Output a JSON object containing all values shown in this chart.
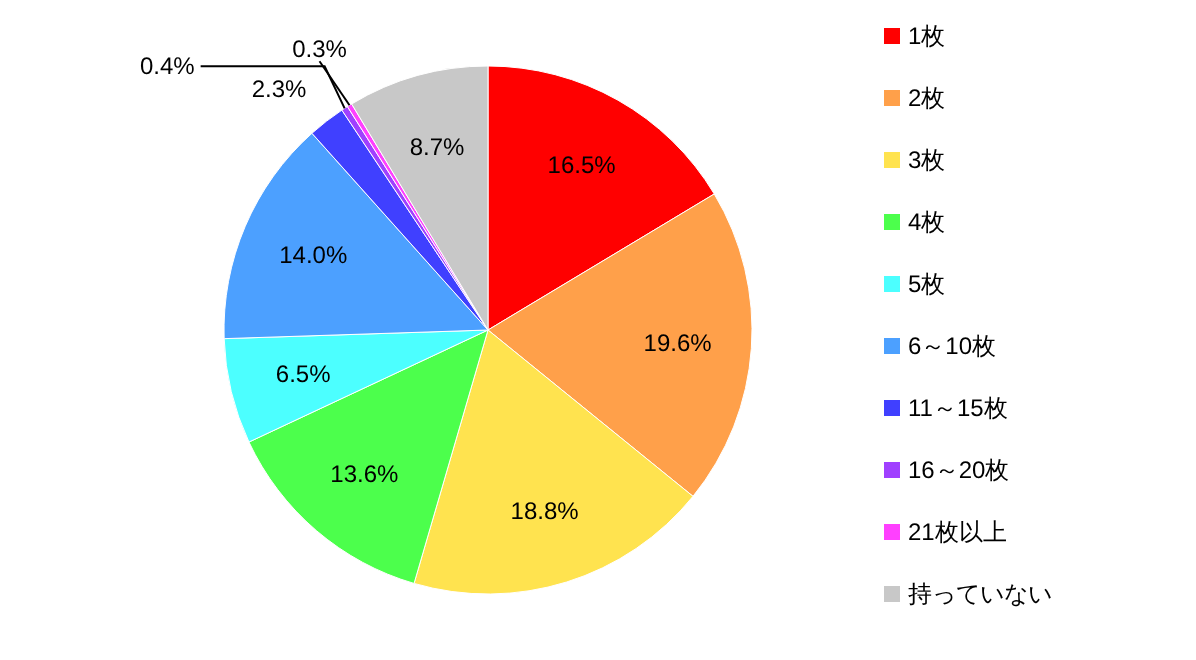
{
  "chart_data": {
    "type": "pie",
    "categories": [
      "1枚",
      "2枚",
      "3枚",
      "4枚",
      "5枚",
      "6～10枚",
      "11～15枚",
      "16～20枚",
      "21枚以上",
      "持っていない"
    ],
    "values": [
      16.5,
      19.6,
      18.8,
      13.6,
      6.5,
      14.0,
      2.3,
      0.4,
      0.3,
      8.7
    ],
    "colors": [
      "#ff0000",
      "#ffa04a",
      "#ffe34f",
      "#4cff4c",
      "#4cffff",
      "#4ca0ff",
      "#4040ff",
      "#a040ff",
      "#ff40ff",
      "#c8c8c8"
    ],
    "value_labels": [
      "16.5%",
      "19.6%",
      "18.8%",
      "13.6%",
      "6.5%",
      "14.0%",
      "2.3%",
      "0.4%",
      "0.3%",
      "8.7%"
    ],
    "legend": "right"
  }
}
